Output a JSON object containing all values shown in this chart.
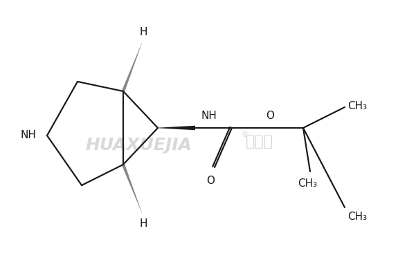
{
  "background_color": "#ffffff",
  "line_color": "#1a1a1a",
  "gray_color": "#888888",
  "figsize": [
    5.88,
    4.05
  ],
  "dpi": 100,
  "watermark1": "HUAXUEJIA",
  "watermark2": "化学加",
  "watermark_color": "#c8c8c8",
  "reg_symbol": "®",
  "NH_label": "NH",
  "H_label": "H",
  "O_label": "O",
  "CH3_label": "CH₃",
  "font_size_label": 11,
  "font_size_watermark": 18,
  "font_size_wm2": 16
}
